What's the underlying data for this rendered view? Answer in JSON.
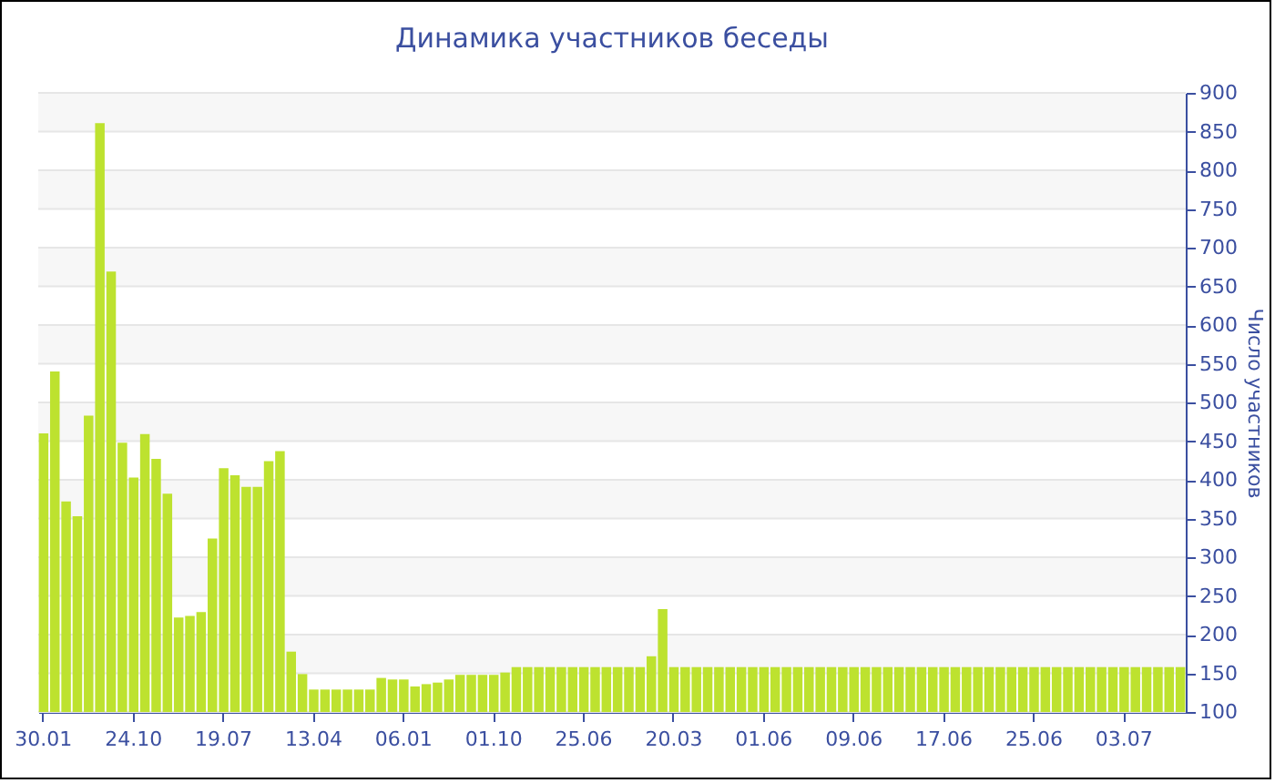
{
  "chart_data": {
    "type": "bar",
    "title": "Динамика участников беседы",
    "ylabel": "Число участников",
    "categories": [
      "30.01",
      null,
      null,
      null,
      null,
      null,
      null,
      null,
      "24.10",
      null,
      null,
      null,
      null,
      null,
      null,
      null,
      "19.07",
      null,
      null,
      null,
      null,
      null,
      null,
      null,
      "13.04",
      null,
      null,
      null,
      null,
      null,
      null,
      null,
      "06.01",
      null,
      null,
      null,
      null,
      null,
      null,
      null,
      "01.10",
      null,
      null,
      null,
      null,
      null,
      null,
      null,
      "25.06",
      null,
      null,
      null,
      null,
      null,
      null,
      null,
      "20.03",
      null,
      null,
      null,
      null,
      null,
      null,
      null,
      "01.06",
      null,
      null,
      null,
      null,
      null,
      null,
      null,
      "09.06",
      null,
      null,
      null,
      null,
      null,
      null,
      null,
      "17.06",
      null,
      null,
      null,
      null,
      null,
      null,
      null,
      "25.06",
      null,
      null,
      null,
      null,
      null,
      null,
      null,
      "03.07",
      null,
      null,
      null,
      null,
      null
    ],
    "values": [
      460,
      540,
      372,
      353,
      483,
      861,
      669,
      448,
      403,
      459,
      427,
      382,
      222,
      224,
      229,
      324,
      415,
      406,
      391,
      391,
      424,
      437,
      178,
      149,
      129,
      129,
      129,
      129,
      129,
      129,
      144,
      142,
      142,
      133,
      136,
      138,
      142,
      148,
      148,
      148,
      148,
      151,
      158,
      158,
      158,
      158,
      158,
      158,
      158,
      158,
      158,
      158,
      158,
      158,
      172,
      233,
      158,
      158,
      158,
      158,
      158,
      158,
      158,
      158,
      158,
      158,
      158,
      158,
      158,
      158,
      158,
      158,
      158,
      158,
      158,
      158,
      158,
      158,
      158,
      158,
      158,
      158,
      158,
      158,
      158,
      158,
      158,
      158,
      158,
      158,
      158,
      158,
      158,
      158,
      158,
      158,
      158,
      158,
      158,
      158,
      158,
      158
    ],
    "color": "#bde22f",
    "ylim": [
      100,
      900
    ],
    "yticks": [
      100,
      150,
      200,
      250,
      300,
      350,
      400,
      450,
      500,
      550,
      600,
      650,
      700,
      750,
      800,
      850,
      900
    ],
    "grid": true
  }
}
